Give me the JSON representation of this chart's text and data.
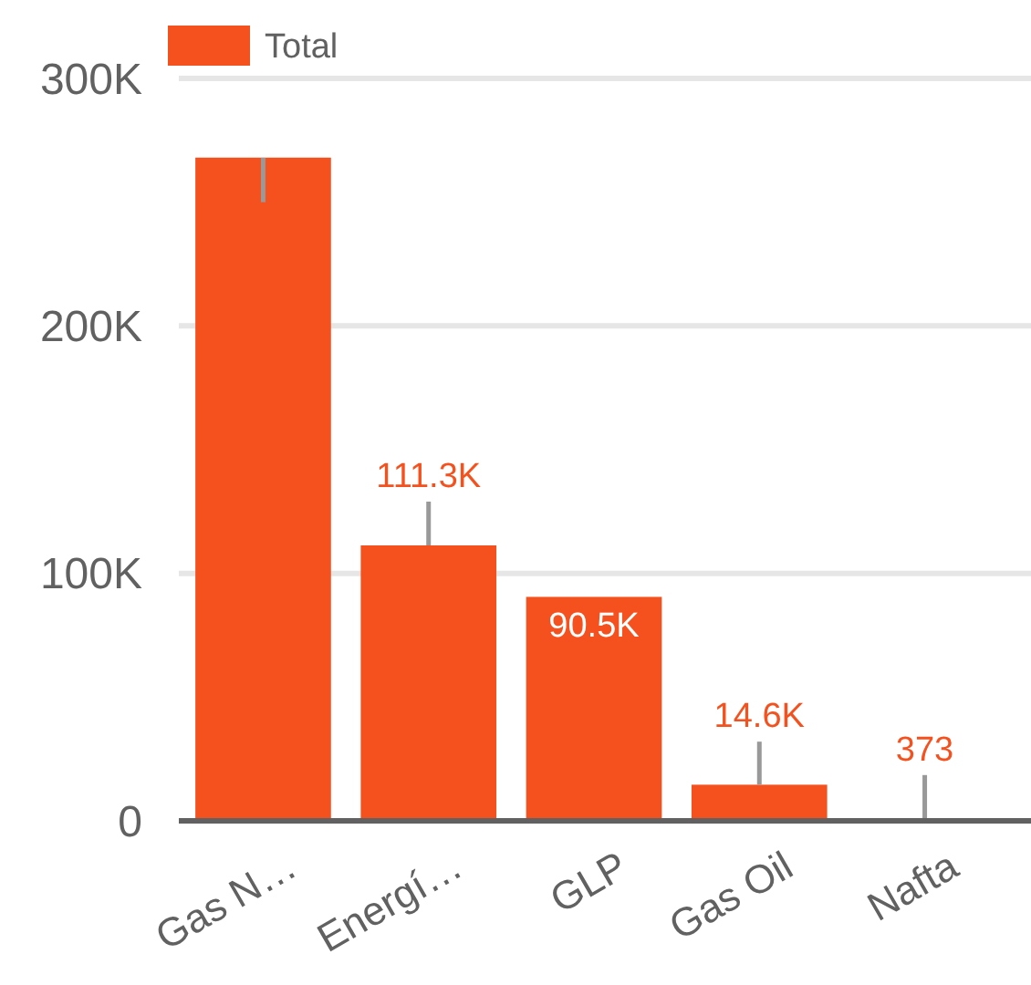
{
  "chart_data": {
    "type": "bar",
    "categories": [
      "Gas N…",
      "Energí…",
      "GLP",
      "Gas Oil",
      "Nafta"
    ],
    "series": [
      {
        "name": "Total",
        "color": "#f4511e",
        "values": [
          268000,
          111300,
          90500,
          14600,
          373
        ],
        "errors": [
          [
            250000,
            268000
          ],
          [
            111300,
            129000
          ],
          null,
          [
            14600,
            32000
          ],
          [
            373,
            18500
          ]
        ],
        "value_labels": [
          null,
          "111.3K",
          "90.5K",
          "14.6K",
          "373"
        ]
      }
    ],
    "ylim": [
      0,
      300000
    ],
    "yticks": [
      {
        "value": 0,
        "label": "0"
      },
      {
        "value": 100000,
        "label": "100K"
      },
      {
        "value": 200000,
        "label": "200K"
      },
      {
        "value": 300000,
        "label": "300K"
      }
    ],
    "grid": "y",
    "legend": "top left"
  }
}
